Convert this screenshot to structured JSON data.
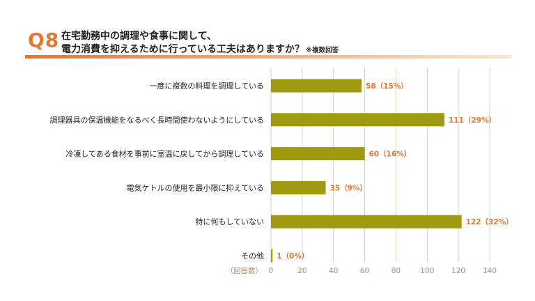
{
  "header": {
    "q_label": "Q8",
    "title_line1": "在宅勤務中の調理や食事に関して、",
    "title_line2": "電力消費を抑えるために行っている工夫はありますか？",
    "title_note": "※複数回答"
  },
  "colors": {
    "accent": "#e8762d",
    "bar": "#a09a10",
    "value_label": "#e8762d",
    "grid": "#d9cfc2",
    "tick_label": "#b08a6c"
  },
  "chart_data": {
    "type": "bar",
    "orientation": "horizontal",
    "categories": [
      "一度に複数の料理を調理している",
      "調理器具の保温機能をなるべく長時間使わないようにしている",
      "冷凍してある食材を事前に室温に戻してから調理している",
      "電気ケトルの使用を最小限に抑えている",
      "特に何もしていない",
      "その他"
    ],
    "values": [
      58,
      111,
      60,
      35,
      122,
      1
    ],
    "value_labels": [
      "58（15%）",
      "111（29%）",
      "60（16%）",
      "35（9%）",
      "122（32%）",
      "1（0%）"
    ],
    "xlabel": "（回答数）",
    "xlim": [
      0,
      140
    ],
    "xticks": [
      0,
      20,
      40,
      60,
      80,
      100,
      120,
      140
    ],
    "grid": true
  }
}
